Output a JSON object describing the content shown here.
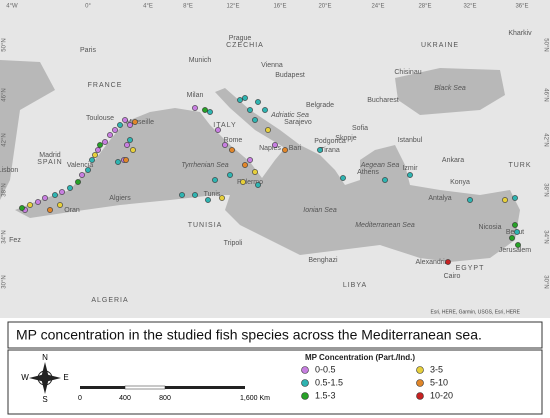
{
  "map": {
    "coordinates": {
      "top": [
        "4°W",
        "0°",
        "4°E",
        "8°E",
        "12°E",
        "16°E",
        "20°E",
        "24°E",
        "28°E",
        "32°E",
        "36°E"
      ],
      "side": [
        "50°N",
        "46°N",
        "42°N",
        "38°N",
        "34°N",
        "30°N"
      ]
    },
    "places": [
      "Paris",
      "FRANCE",
      "Milan",
      "Munich",
      "Prague",
      "CZECHIA",
      "Vienna",
      "Budapest",
      "UKRAINE",
      "Kharkiv",
      "Chisinau",
      "Bucharest",
      "Belgrade",
      "Sarajevo",
      "Podgorica",
      "Sofia",
      "Tirana",
      "Skopje",
      "ITALY",
      "Rome",
      "Naples",
      "Bari",
      "Palermo",
      "Madrid",
      "SPAIN",
      "Lisbon",
      "Valencia",
      "Oran",
      "Algiers",
      "Tunis",
      "TUNISIA",
      "ALGERIA",
      "Tripoli",
      "Benghazi",
      "LIBYA",
      "Alexandria",
      "Cairo",
      "EGYPT",
      "Athens",
      "Izmir",
      "Istanbul",
      "Ankara",
      "TURK",
      "Konya",
      "Antalya",
      "Nicosia",
      "Beirut",
      "Jerusalem",
      "Fez",
      "Toulouse",
      "Marseille",
      "Mediterranean Sea",
      "Ionian Sea",
      "Tyrrhenian Sea",
      "Aegean Sea",
      "Adriatic Sea",
      "Black Sea"
    ],
    "attribution": "Esri, HERE, Garmin, USGS, Esri, HERE"
  },
  "caption": "MP concentration in the studied fish species across the Mediterranean sea.",
  "legend": {
    "title": "MP Concentration (Part./Ind.)",
    "items": [
      {
        "label": "0-0.5",
        "color": "#c77fe0"
      },
      {
        "label": "0.5-1.5",
        "color": "#2fb3b0"
      },
      {
        "label": "1.5-3",
        "color": "#27a127"
      },
      {
        "label": "3-5",
        "color": "#e6cf3c"
      },
      {
        "label": "5-10",
        "color": "#e0862a"
      },
      {
        "label": "10-20",
        "color": "#c62222"
      }
    ]
  },
  "compass": {
    "n": "N",
    "s": "S",
    "e": "E",
    "w": "W"
  },
  "scale": [
    "0",
    "400",
    "800",
    "1,600 Km"
  ]
}
